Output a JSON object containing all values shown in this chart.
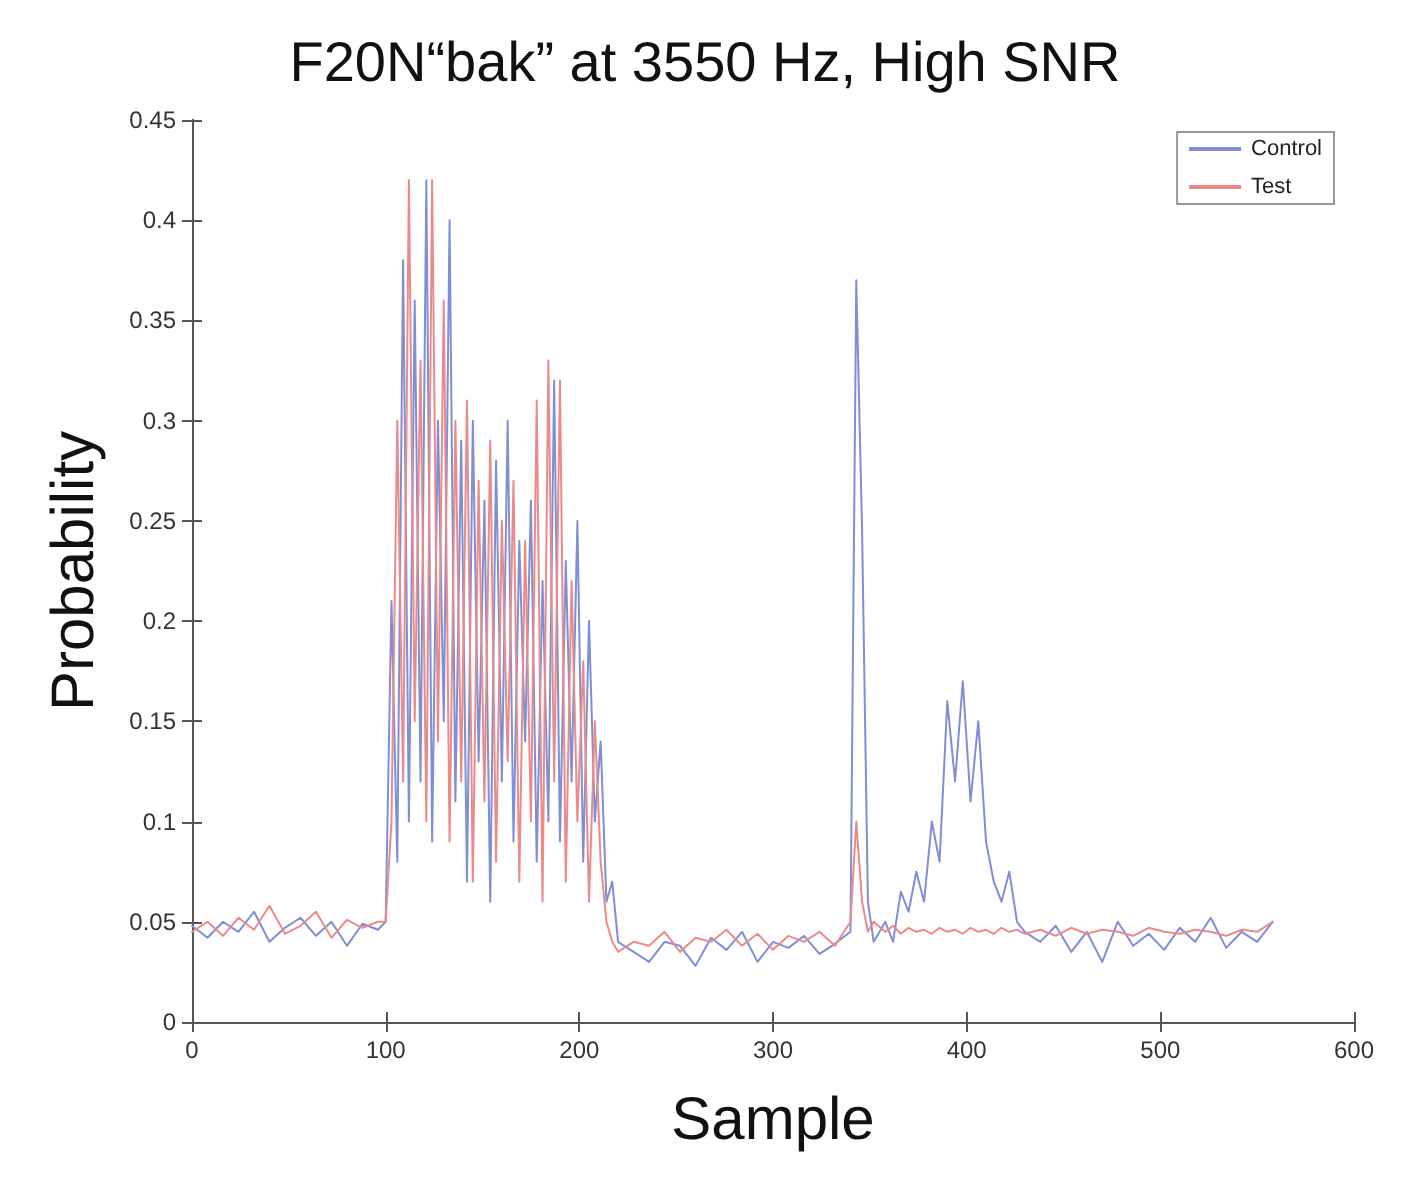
{
  "chart_data": {
    "type": "line",
    "title": "F20N“bak” at 3550 Hz, High SNR",
    "xlabel": "Sample",
    "ylabel": "Probability",
    "x": [
      0,
      8,
      16,
      24,
      32,
      40,
      48,
      56,
      64,
      72,
      80,
      88,
      96,
      100,
      103,
      106,
      109,
      112,
      115,
      118,
      121,
      124,
      127,
      130,
      133,
      136,
      139,
      142,
      145,
      148,
      151,
      154,
      157,
      160,
      163,
      166,
      169,
      172,
      175,
      178,
      181,
      184,
      187,
      190,
      193,
      196,
      199,
      202,
      205,
      208,
      211,
      214,
      217,
      220,
      228,
      236,
      244,
      252,
      260,
      268,
      276,
      284,
      292,
      300,
      308,
      316,
      324,
      332,
      340,
      343,
      346,
      349,
      352,
      358,
      362,
      366,
      370,
      374,
      378,
      382,
      386,
      390,
      394,
      398,
      402,
      406,
      410,
      414,
      418,
      422,
      426,
      430,
      438,
      446,
      454,
      462,
      470,
      478,
      486,
      494,
      502,
      510,
      518,
      526,
      534,
      542,
      550,
      558
    ],
    "series": [
      {
        "name": "Control",
        "color": "#7f8fd6",
        "values": [
          0.048,
          0.042,
          0.05,
          0.045,
          0.055,
          0.04,
          0.047,
          0.052,
          0.043,
          0.05,
          0.038,
          0.049,
          0.046,
          0.05,
          0.21,
          0.08,
          0.38,
          0.1,
          0.36,
          0.12,
          0.42,
          0.09,
          0.3,
          0.15,
          0.4,
          0.11,
          0.29,
          0.07,
          0.3,
          0.13,
          0.26,
          0.06,
          0.28,
          0.12,
          0.3,
          0.09,
          0.24,
          0.14,
          0.26,
          0.08,
          0.22,
          0.1,
          0.32,
          0.09,
          0.23,
          0.12,
          0.25,
          0.08,
          0.2,
          0.1,
          0.14,
          0.06,
          0.07,
          0.04,
          0.035,
          0.03,
          0.04,
          0.038,
          0.028,
          0.042,
          0.036,
          0.045,
          0.03,
          0.04,
          0.037,
          0.043,
          0.034,
          0.039,
          0.045,
          0.37,
          0.245,
          0.06,
          0.04,
          0.05,
          0.04,
          0.065,
          0.055,
          0.075,
          0.06,
          0.1,
          0.08,
          0.16,
          0.12,
          0.17,
          0.11,
          0.15,
          0.09,
          0.07,
          0.06,
          0.075,
          0.05,
          0.045,
          0.04,
          0.048,
          0.035,
          0.045,
          0.03,
          0.05,
          0.038,
          0.044,
          0.036,
          0.047,
          0.04,
          0.052,
          0.037,
          0.045,
          0.04,
          0.05
        ]
      },
      {
        "name": "Test",
        "color": "#ec8a8a",
        "values": [
          0.045,
          0.05,
          0.043,
          0.052,
          0.046,
          0.058,
          0.044,
          0.048,
          0.055,
          0.042,
          0.051,
          0.047,
          0.05,
          0.05,
          0.1,
          0.3,
          0.12,
          0.42,
          0.15,
          0.33,
          0.1,
          0.42,
          0.14,
          0.36,
          0.09,
          0.3,
          0.12,
          0.31,
          0.07,
          0.27,
          0.11,
          0.29,
          0.08,
          0.25,
          0.13,
          0.27,
          0.07,
          0.24,
          0.1,
          0.31,
          0.06,
          0.33,
          0.12,
          0.32,
          0.07,
          0.22,
          0.1,
          0.18,
          0.06,
          0.15,
          0.08,
          0.05,
          0.04,
          0.035,
          0.04,
          0.038,
          0.045,
          0.035,
          0.042,
          0.04,
          0.046,
          0.038,
          0.044,
          0.036,
          0.043,
          0.04,
          0.045,
          0.038,
          0.05,
          0.1,
          0.06,
          0.045,
          0.05,
          0.045,
          0.048,
          0.044,
          0.047,
          0.045,
          0.046,
          0.044,
          0.047,
          0.045,
          0.046,
          0.044,
          0.047,
          0.045,
          0.046,
          0.044,
          0.047,
          0.045,
          0.046,
          0.044,
          0.046,
          0.043,
          0.047,
          0.044,
          0.046,
          0.045,
          0.043,
          0.047,
          0.045,
          0.044,
          0.046,
          0.045,
          0.043,
          0.046,
          0.045,
          0.05
        ]
      }
    ],
    "xlim": [
      0,
      600
    ],
    "xticks": [
      0,
      100,
      200,
      300,
      400,
      500,
      600
    ],
    "ylim": [
      0,
      0.45
    ],
    "yticks": [
      0,
      0.05,
      0.1,
      0.15,
      0.2,
      0.25,
      0.3,
      0.35,
      0.4,
      0.45
    ],
    "grid": false,
    "legend": "top right",
    "marker": "none",
    "line_style": "solid"
  }
}
